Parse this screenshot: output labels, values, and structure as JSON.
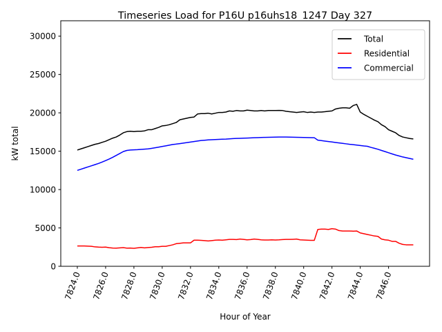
{
  "chart_data": {
    "type": "line",
    "title": "Timeseries Load for P16U p16uhs18_1247  Day 327",
    "xlabel": "Hour of Year",
    "ylabel": "kW total",
    "xlim": [
      7822.83,
      7848.9
    ],
    "ylim": [
      0,
      32000
    ],
    "xticks": [
      7824,
      7826,
      7828,
      7830,
      7832,
      7834,
      7836,
      7838,
      7840,
      7842,
      7844,
      7846
    ],
    "xtick_labels": [
      "7824.0",
      "7826.0",
      "7828.0",
      "7830.0",
      "7832.0",
      "7834.0",
      "7836.0",
      "7838.0",
      "7840.0",
      "7842.0",
      "7844.0",
      "7846.0"
    ],
    "yticks": [
      0,
      5000,
      10000,
      15000,
      20000,
      25000,
      30000
    ],
    "ytick_labels": [
      "0",
      "5000",
      "10000",
      "15000",
      "20000",
      "25000",
      "30000"
    ],
    "grid": false,
    "legend_position": "top-right",
    "x_start": 7824.0,
    "x_step": 0.25,
    "series": [
      {
        "name": "Total",
        "color": "#000000",
        "values": [
          15150,
          15300,
          15450,
          15600,
          15750,
          15900,
          16000,
          16150,
          16300,
          16500,
          16700,
          16850,
          17100,
          17400,
          17550,
          17600,
          17550,
          17600,
          17600,
          17650,
          17800,
          17800,
          17950,
          18100,
          18300,
          18350,
          18450,
          18600,
          18750,
          19100,
          19200,
          19300,
          19400,
          19450,
          19850,
          19900,
          19900,
          19950,
          19850,
          19950,
          20050,
          20050,
          20100,
          20250,
          20200,
          20300,
          20250,
          20250,
          20350,
          20300,
          20250,
          20250,
          20300,
          20250,
          20300,
          20300,
          20300,
          20320,
          20300,
          20200,
          20150,
          20100,
          20050,
          20100,
          20150,
          20050,
          20100,
          20050,
          20100,
          20100,
          20150,
          20200,
          20250,
          20500,
          20600,
          20650,
          20650,
          20600,
          20950,
          21100,
          21100,
          21050,
          21450,
          21300,
          21200,
          21150,
          21100,
          21050,
          20950,
          21050,
          20900,
          20550,
          20400,
          20350,
          20300,
          20250
        ]
      },
      {
        "name": "Residential",
        "color": "#ff0000",
        "values": [
          2650,
          2650,
          2650,
          2630,
          2600,
          2530,
          2500,
          2480,
          2500,
          2420,
          2380,
          2370,
          2400,
          2430,
          2370,
          2380,
          2340,
          2400,
          2460,
          2400,
          2450,
          2480,
          2550,
          2550,
          2600,
          2600,
          2700,
          2800,
          2950,
          3000,
          3050,
          3050,
          3050,
          3400,
          3400,
          3380,
          3350,
          3300,
          3350,
          3400,
          3420,
          3400,
          3450,
          3500,
          3500,
          3480,
          3550,
          3500,
          3450,
          3480,
          3550,
          3500,
          3450,
          3420,
          3420,
          3450,
          3430,
          3450,
          3480,
          3500,
          3500,
          3520,
          3550,
          3450,
          3420,
          3400,
          3380,
          3380,
          3420,
          3450,
          3350,
          3350,
          3360,
          3350,
          3350,
          3380,
          3360,
          3380,
          3420,
          3480,
          3520,
          3700,
          3800,
          3850,
          3900,
          3850,
          4200,
          4300,
          4350,
          4350,
          4400,
          4800,
          4750,
          4750,
          4750,
          4800
        ]
      },
      {
        "name": "Commercial",
        "color": "#0000ff",
        "values": [
          12500,
          12650,
          12800,
          12950,
          13100,
          13250,
          13400,
          13580,
          13780,
          13980,
          14200,
          14450,
          14700,
          14950,
          15100,
          15150,
          15180,
          15200,
          15230,
          15270,
          15300,
          15370,
          15450,
          15530,
          15620,
          15700,
          15790,
          15880,
          15930,
          15990,
          16060,
          16120,
          16190,
          16260,
          16330,
          16390,
          16430,
          16470,
          16500,
          16520,
          16540,
          16560,
          16580,
          16610,
          16640,
          16660,
          16680,
          16700,
          16710,
          16730,
          16750,
          16770,
          16790,
          16800,
          16810,
          16820,
          16830,
          16840,
          16840,
          16840,
          16830,
          16820,
          16810,
          16800,
          16790,
          16780,
          16770,
          16760,
          16760,
          16760,
          16760,
          16760,
          16770,
          16770,
          16770,
          16780,
          16780,
          16790,
          16790,
          16790,
          16780,
          16770,
          16760,
          16750,
          16740,
          16730,
          16740,
          16750,
          16740,
          16720,
          16700,
          16680,
          16650,
          16600,
          16550,
          16500
        ]
      }
    ],
    "series_tail": {
      "Total": [
        20100,
        19800,
        19550,
        19300,
        19050,
        18850,
        18450,
        18200,
        17800,
        17600,
        17400,
        17050,
        16850,
        16750,
        16650,
        16600
      ],
      "Residential": [
        4800,
        4850,
        4850,
        4800,
        4900,
        4850,
        4650,
        4600,
        4600,
        4600,
        4580,
        4600,
        4350,
        4250,
        4150,
        4050,
        3950,
        3900,
        3550,
        3450,
        3400,
        3250,
        3250,
        3000,
        2850,
        2800,
        2800,
        2800
      ],
      "Commercial": [
        16440,
        16380,
        16320,
        16260,
        16200,
        16140,
        16080,
        16020,
        15960,
        15900,
        15850,
        15800,
        15740,
        15680,
        15640,
        15500,
        15380,
        15250,
        15100,
        14950,
        14800,
        14650,
        14500,
        14380,
        14250,
        14150,
        14050,
        13950
      ]
    }
  }
}
